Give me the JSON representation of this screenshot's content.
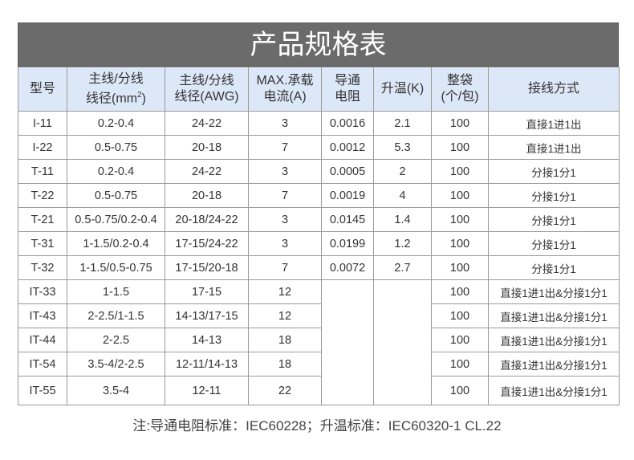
{
  "title": "产品规格表",
  "headers": [
    {
      "line1": "型号",
      "line2": ""
    },
    {
      "line1": "主线/分线",
      "line2": "线径(mm",
      "sup": "2",
      "after": ")"
    },
    {
      "line1": "主线/分线",
      "line2": "线径(AWG)"
    },
    {
      "line1": "MAX.承载",
      "line2": "电流(A)"
    },
    {
      "line1": "导通",
      "line2": "电阻"
    },
    {
      "line1": "升温(K)",
      "line2": ""
    },
    {
      "line1": "整袋",
      "line2": "(个/包)"
    },
    {
      "line1": "接线方式",
      "line2": ""
    }
  ],
  "rows": [
    [
      "I-11",
      "0.2-0.4",
      "24-22",
      "3",
      "0.0016",
      "2.1",
      "100",
      "直接1进1出"
    ],
    [
      "I-22",
      "0.5-0.75",
      "20-18",
      "7",
      "0.0012",
      "5.3",
      "100",
      "直接1进1出"
    ],
    [
      "T-11",
      "0.2-0.4",
      "24-22",
      "3",
      "0.0005",
      "2",
      "100",
      "分接1分1"
    ],
    [
      "T-22",
      "0.5-0.75",
      "20-18",
      "7",
      "0.0019",
      "4",
      "100",
      "分接1分1"
    ],
    [
      "T-21",
      "0.5-0.75/0.2-0.4",
      "20-18/24-22",
      "3",
      "0.0145",
      "1.4",
      "100",
      "分接1分1"
    ],
    [
      "T-31",
      "1-1.5/0.2-0.4",
      "17-15/24-22",
      "3",
      "0.0199",
      "1.2",
      "100",
      "分接1分1"
    ],
    [
      "T-32",
      "1-1.5/0.5-0.75",
      "17-15/20-18",
      "7",
      "0.0072",
      "2.7",
      "100",
      "分接1分1"
    ],
    [
      "IT-33",
      "1-1.5",
      "17-15",
      "12",
      "",
      "",
      "100",
      "直接1进1出&分接1分1"
    ],
    [
      "IT-43",
      "2-2.5/1-1.5",
      "14-13/17-15",
      "12",
      "",
      "",
      "100",
      "直接1进1出&分接1分1"
    ],
    [
      "IT-44",
      "2-2.5",
      "14-13",
      "18",
      "",
      "",
      "100",
      "直接1进1出&分接1分1"
    ],
    [
      "IT-54",
      "3.5-4/2-2.5",
      "12-11/14-13",
      "18",
      "",
      "",
      "100",
      "直接1进1出&分接1分1"
    ],
    [
      "IT-55",
      "3.5-4",
      "12-11",
      "22",
      "",
      "",
      "100",
      "直接1进1出&分接1分1"
    ]
  ],
  "note": "注:导通电阻标准：IEC60228；升温标准：IEC60320-1 CL.22"
}
